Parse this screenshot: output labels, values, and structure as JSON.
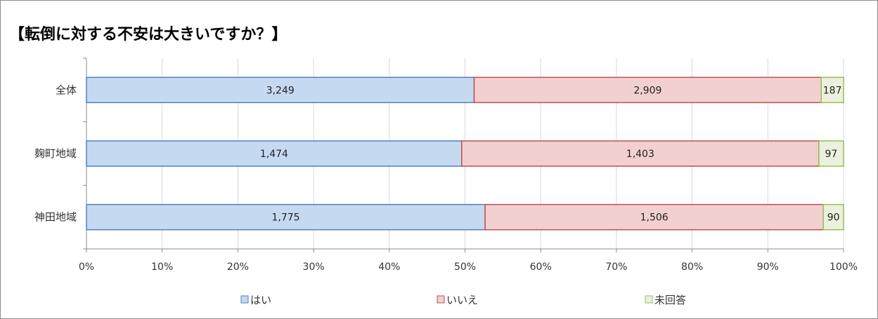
{
  "chart_data": {
    "type": "bar",
    "orientation": "horizontal",
    "stacking": "percent",
    "title": "【転倒に対する不安は大きいですか？】",
    "categories": [
      "全体",
      "麹町地域",
      "神田地域"
    ],
    "series": [
      {
        "name": "はい",
        "values": [
          3249,
          1474,
          1775
        ],
        "color": "#c5d9f1",
        "edge": "#4f81bd"
      },
      {
        "name": "いいえ",
        "values": [
          2909,
          1403,
          1506
        ],
        "color": "#f2d0d0",
        "edge": "#c0504d"
      },
      {
        "name": "未回答",
        "values": [
          187,
          97,
          90
        ],
        "color": "#ebf1de",
        "edge": "#9bbb59"
      }
    ],
    "data_labels": [
      [
        "3,249",
        "2,909",
        "187"
      ],
      [
        "1,474",
        "1,403",
        "97"
      ],
      [
        "1,775",
        "1,506",
        "90"
      ]
    ],
    "xticks": [
      "0%",
      "10%",
      "20%",
      "30%",
      "40%",
      "50%",
      "60%",
      "70%",
      "80%",
      "90%",
      "100%"
    ],
    "xlim": [
      0,
      100
    ],
    "grid": true,
    "legend_position": "bottom"
  }
}
